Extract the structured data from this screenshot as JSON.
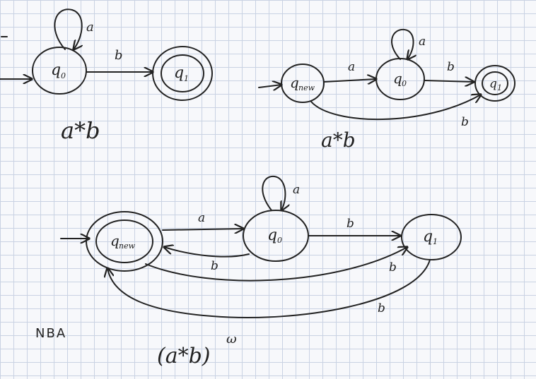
{
  "diagram1": {
    "states": {
      "q0": "q",
      "q0_sub": "0",
      "q1": "q",
      "q1_sub": "1"
    },
    "edges": {
      "loop_q0": "a",
      "q0_q1": "b"
    },
    "caption": "a*b"
  },
  "diagram2": {
    "states": {
      "qnew": "q",
      "qnew_sub": "new",
      "q0": "q",
      "q0_sub": "0",
      "q1": "q",
      "q1_sub": "1"
    },
    "edges": {
      "qnew_q0": "a",
      "loop_q0": "a",
      "q0_q1": "b",
      "qnew_q1": "b"
    },
    "caption": "a*b"
  },
  "diagram3": {
    "states": {
      "qnew": "q",
      "qnew_sub": "new",
      "q0": "q",
      "q0_sub": "0",
      "q1": "q",
      "q1_sub": "1"
    },
    "edges": {
      "qnew_q0": "a",
      "loop_q0": "a",
      "q0_qnew": "b",
      "qnew_q1": "b",
      "q0_q1": "b",
      "q1_qnew": "b"
    },
    "label": "NBA",
    "caption": "(a*b)",
    "caption_sup": "ω"
  },
  "colors": {
    "ink": "#222222",
    "grid": "#c9d2e3",
    "paper": "#f7f8fb"
  }
}
